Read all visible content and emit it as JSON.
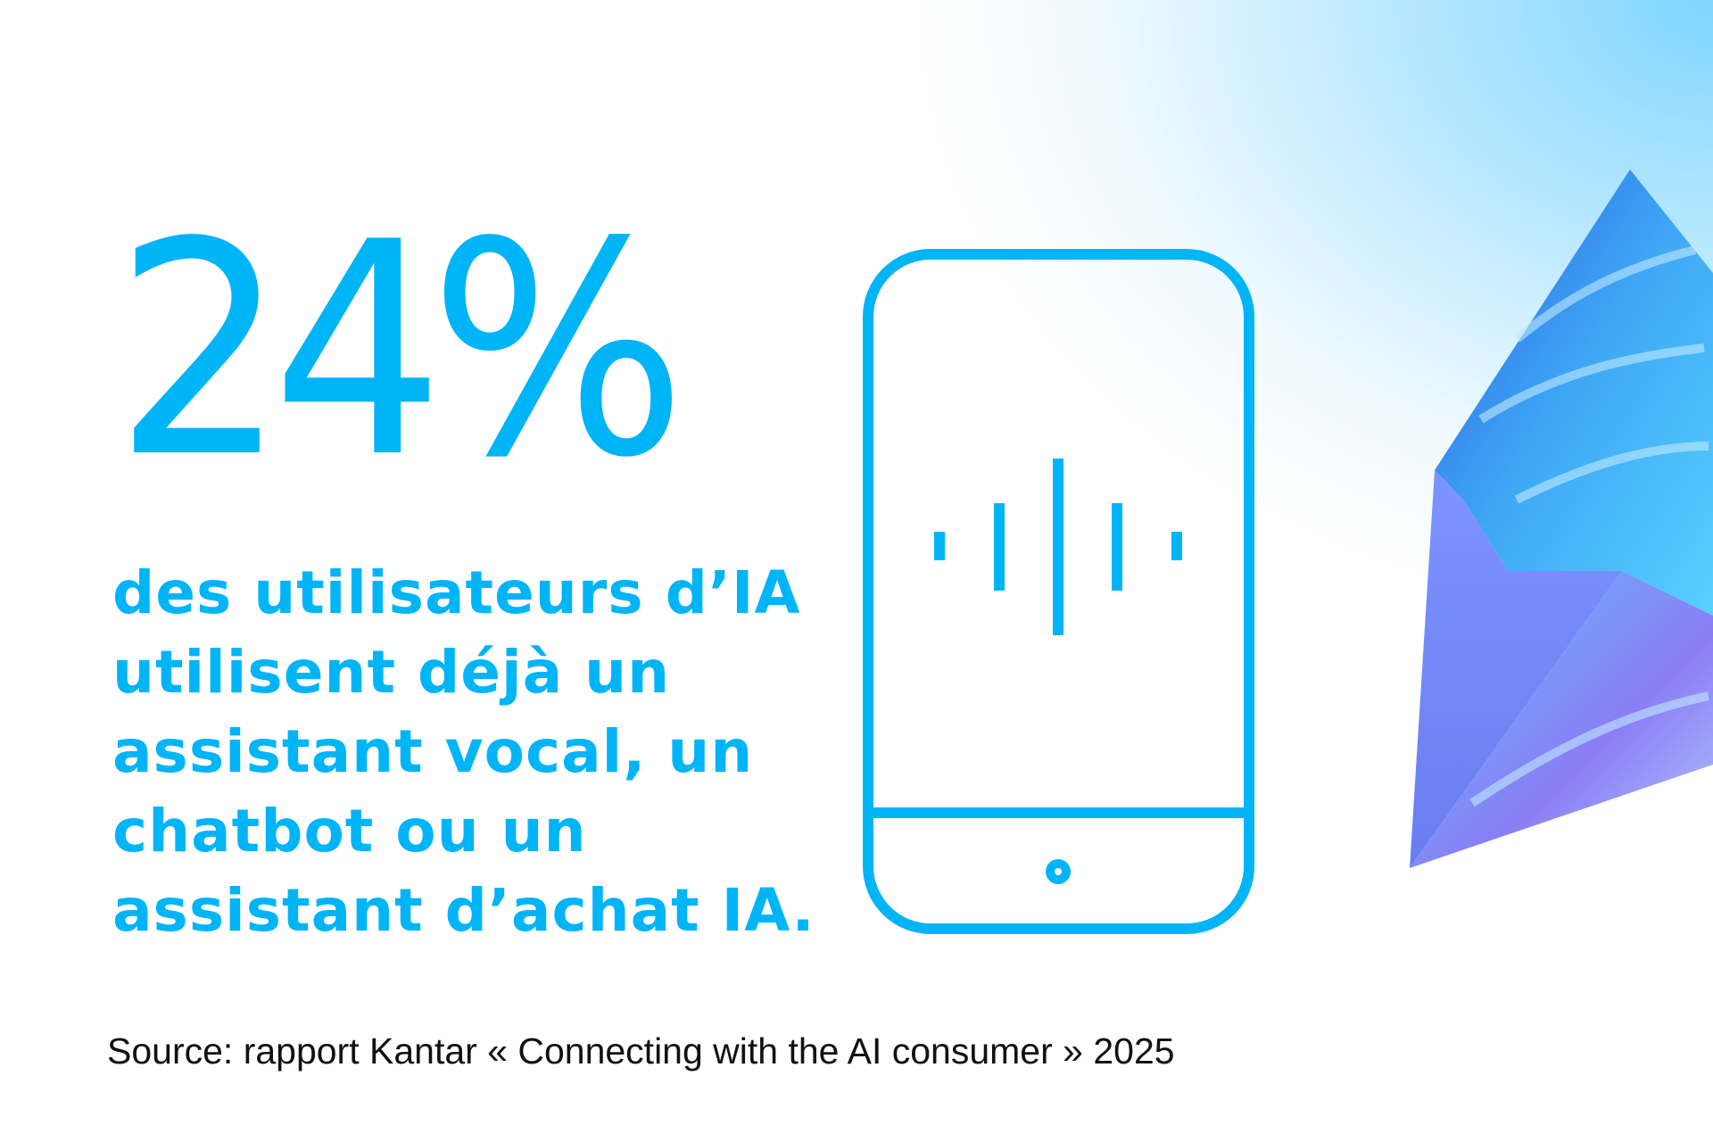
{
  "stat": {
    "value": "24%"
  },
  "description": {
    "lines": [
      "des utilisateurs d’IA",
      "utilisent déjà un",
      "assistant vocal, un",
      "chatbot ou un",
      "assistant d’achat IA."
    ]
  },
  "source": "Source: rapport Kantar « Connecting with the AI consumer » 2025",
  "icons": {
    "phone": "smartphone-voice-icon",
    "decoration": "crystal-prism"
  },
  "colors": {
    "accent": "#00B4F8",
    "text": "#111111"
  }
}
